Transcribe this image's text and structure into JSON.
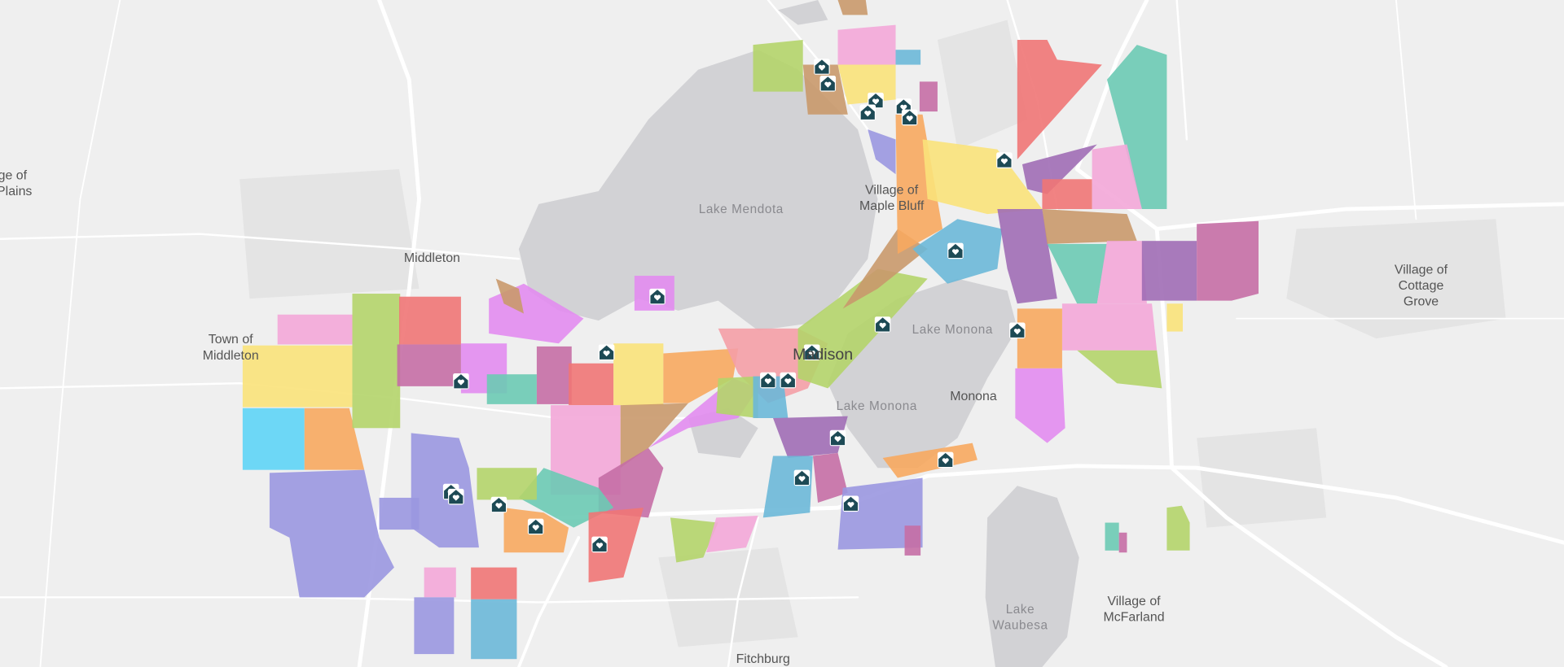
{
  "map": {
    "labels": [
      {
        "lines": [
          "Village of",
          "ross Plains"
        ]
      },
      {
        "lines": [
          "Lake Mendota"
        ]
      },
      {
        "lines": [
          "Village of",
          "Maple Bluff"
        ]
      },
      {
        "lines": [
          "Middleton"
        ]
      },
      {
        "lines": [
          "Town of",
          "Middleton"
        ]
      },
      {
        "lines": [
          "Madison"
        ]
      },
      {
        "lines": [
          "Lake Monona"
        ]
      },
      {
        "lines": [
          "Lake Monona"
        ]
      },
      {
        "lines": [
          "Monona"
        ]
      },
      {
        "lines": [
          "Village of",
          "Cottage",
          "Grove"
        ]
      },
      {
        "lines": [
          "Lake",
          "Waubesa"
        ]
      },
      {
        "lines": [
          "Village of",
          "McFarland"
        ]
      },
      {
        "lines": [
          "Fitchburg"
        ]
      }
    ]
  }
}
